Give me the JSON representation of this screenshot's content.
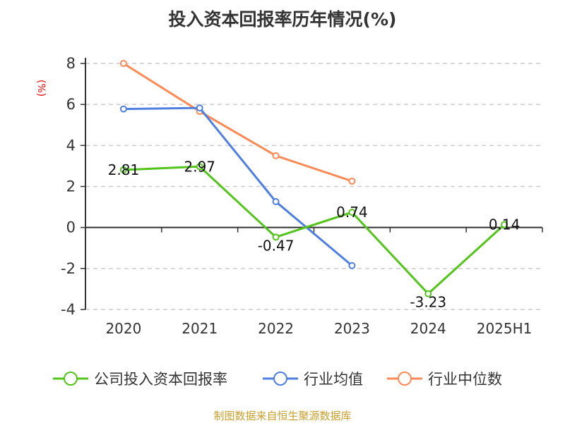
{
  "chart_data": {
    "type": "line",
    "title": "投入资本回报率历年情况(%)",
    "ylabel": "(%)",
    "xlabel": "",
    "categories": [
      "2020",
      "2021",
      "2022",
      "2023",
      "2024",
      "2025H1"
    ],
    "ylim": [
      -4,
      8
    ],
    "yticks": [
      -4,
      -2,
      0,
      2,
      4,
      6,
      8
    ],
    "grid": true,
    "legend_position": "bottom",
    "series": [
      {
        "name": "公司投入资本回报率",
        "color": "#52c41a",
        "values": [
          2.81,
          2.97,
          -0.47,
          0.74,
          -3.23,
          0.14
        ],
        "labels": [
          "2.81",
          "2.97",
          "-0.47",
          "0.74",
          "-3.23",
          "0.14"
        ]
      },
      {
        "name": "行业均值",
        "color": "#4e7fe0",
        "values": [
          5.78,
          5.83,
          1.26,
          -1.86,
          null,
          null
        ]
      },
      {
        "name": "行业中位数",
        "color": "#fb8a55",
        "values": [
          8.0,
          5.66,
          3.5,
          2.26,
          null,
          null
        ]
      }
    ]
  },
  "source": "制图数据来自恒生聚源数据库"
}
